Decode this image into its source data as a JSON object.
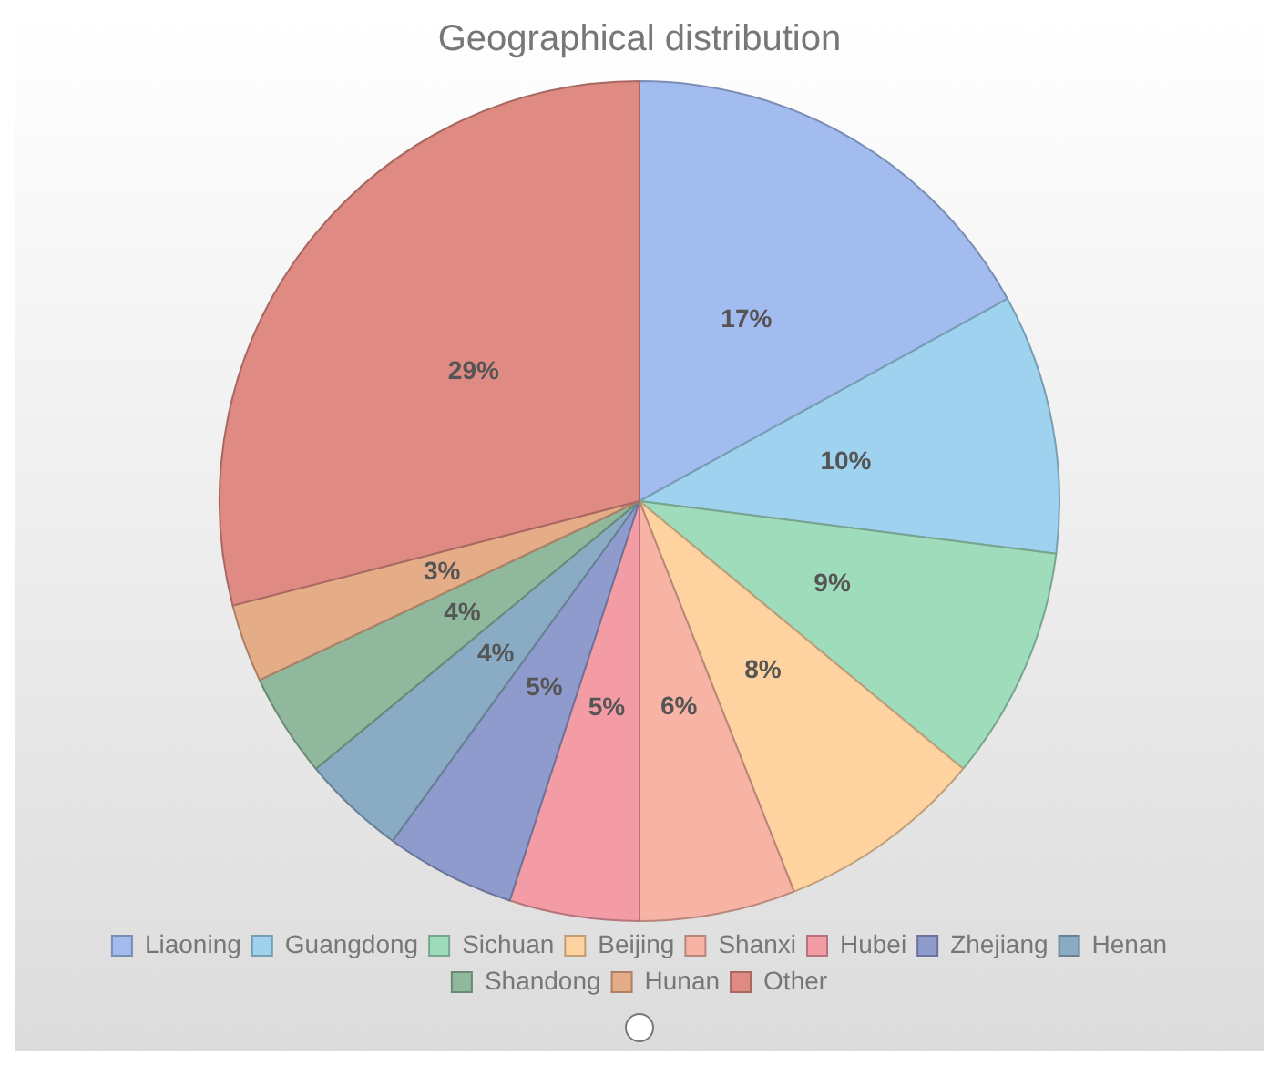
{
  "chart_data": {
    "type": "pie",
    "title": "Geographical distribution",
    "categories": [
      "Liaoning",
      "Guangdong",
      "Sichuan",
      "Beijing",
      "Shanxi",
      "Hubei",
      "Zhejiang",
      "Henan",
      "Shandong",
      "Hunan",
      "Other"
    ],
    "values": [
      17,
      10,
      9,
      8,
      6,
      5,
      5,
      4,
      4,
      3,
      29
    ],
    "value_labels": [
      "17%",
      "10%",
      "9%",
      "8%",
      "6%",
      "5%",
      "5%",
      "4%",
      "4%",
      "3%",
      "29%"
    ],
    "colors": [
      "#a3bcf0",
      "#9fd2ee",
      "#9edcbc",
      "#fed3a0",
      "#f7b3a4",
      "#f39ca6",
      "#8f9bcd",
      "#8aabc4",
      "#8fb89c",
      "#e5ac88",
      "#df8a82"
    ],
    "legend": "bottom"
  }
}
